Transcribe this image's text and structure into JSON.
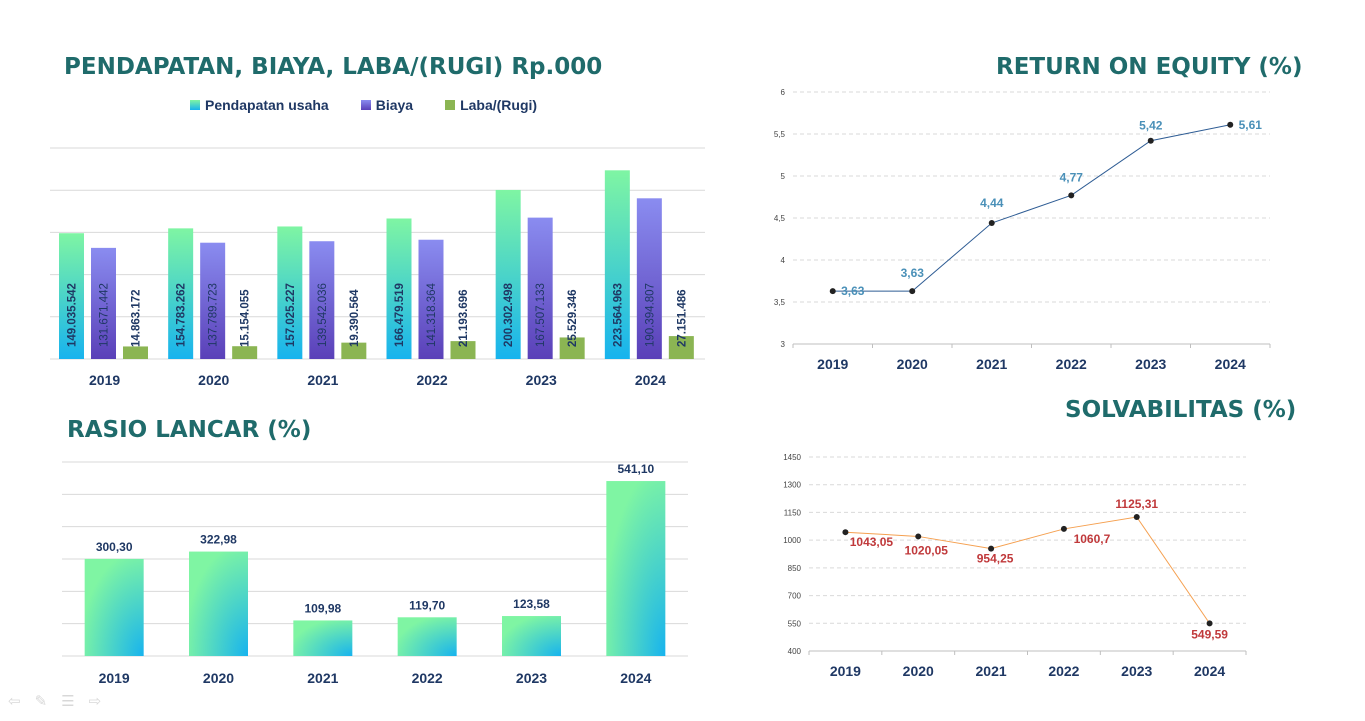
{
  "colors": {
    "title": "#1f6b6b",
    "revenue_top": "#7ff5a3",
    "revenue_bottom": "#17b3ee",
    "cost_top": "#8a8cf0",
    "cost_bottom": "#5a40b8",
    "profit": "#8bb553",
    "roe_line": "#2e5c94",
    "roe_label": "#4a90b8",
    "solv_line": "#f5a050",
    "solv_label": "#c0393b",
    "category": "#1f3864"
  },
  "nav_icons": [
    "back-icon",
    "pen-icon",
    "menu-icon",
    "forward-icon"
  ],
  "chart_data": [
    {
      "id": "income",
      "type": "bar",
      "title": "PENDAPATAN, BIAYA, LABA/(RUGI) Rp.000",
      "categories": [
        "2019",
        "2020",
        "2021",
        "2022",
        "2023",
        "2024"
      ],
      "series": [
        {
          "name": "Pendapatan usaha",
          "values": [
            149035542,
            154783262,
            157025227,
            166479519,
            200302498,
            223564963
          ],
          "labels": [
            "149.035.542",
            "154.783.262",
            "157.025.227",
            "166.479.519",
            "200.302.498",
            "223.564.963"
          ]
        },
        {
          "name": "Biaya",
          "values": [
            131671442,
            137789723,
            139542036,
            141318364,
            167507133,
            190394807
          ],
          "labels": [
            "131.671.442",
            "137.789.723",
            "139.542.036",
            "141.318.364",
            "167.507.133",
            "190.394.807"
          ]
        },
        {
          "name": "Laba/(Rugi)",
          "values": [
            14863172,
            15154055,
            19390564,
            21193696,
            25529346,
            27151486
          ],
          "labels": [
            "14.863.172",
            "15.154.055",
            "19.390.564",
            "21.193.696",
            "25.529.346",
            "27.151.486"
          ]
        }
      ],
      "ylim": [
        0,
        250000000
      ],
      "grid": true,
      "legend": "top"
    },
    {
      "id": "roe",
      "type": "line",
      "title": "RETURN ON EQUITY (%)",
      "x": [
        "2019",
        "2020",
        "2021",
        "2022",
        "2023",
        "2024"
      ],
      "values": [
        3.63,
        3.63,
        4.44,
        4.77,
        5.42,
        5.61
      ],
      "labels": [
        "3,63",
        "3,63",
        "4,44",
        "4,77",
        "5,42",
        "5,61"
      ],
      "yticks": [
        "3",
        "3,5",
        "4",
        "4,5",
        "5",
        "5,5",
        "6"
      ],
      "ylim": [
        3,
        6
      ],
      "grid": true
    },
    {
      "id": "current_ratio",
      "type": "bar",
      "title": "RASIO LANCAR (%)",
      "categories": [
        "2019",
        "2020",
        "2021",
        "2022",
        "2023",
        "2024"
      ],
      "values": [
        300.3,
        322.98,
        109.98,
        119.7,
        123.58,
        541.1
      ],
      "labels": [
        "300,30",
        "322,98",
        "109,98",
        "119,70",
        "123,58",
        "541,10"
      ],
      "ylim": [
        0,
        600
      ],
      "grid": true
    },
    {
      "id": "solvency",
      "type": "line",
      "title": "SOLVABILITAS (%)",
      "x": [
        "2019",
        "2020",
        "2021",
        "2022",
        "2023",
        "2024"
      ],
      "values": [
        1043.05,
        1020.05,
        954.25,
        1060.7,
        1125.31,
        549.59
      ],
      "labels": [
        "1043,05",
        "1020,05",
        "954,25",
        "1060,7",
        "1125,31",
        "549,59"
      ],
      "yticks": [
        "400",
        "550",
        "700",
        "850",
        "1000",
        "1150",
        "1300",
        "1450"
      ],
      "ylim": [
        400,
        1450
      ],
      "grid": true
    }
  ]
}
